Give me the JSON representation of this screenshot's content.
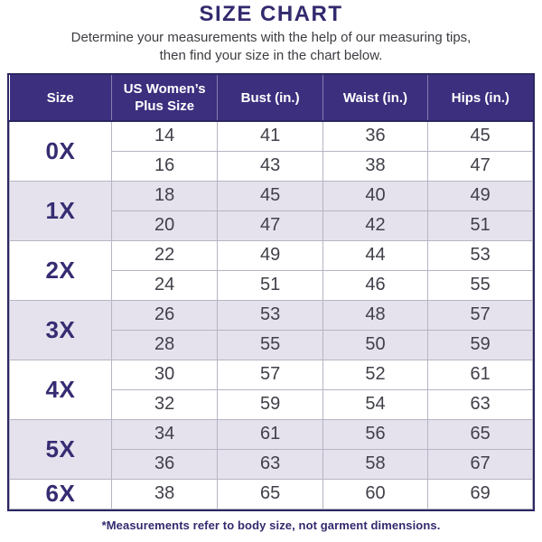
{
  "page": {
    "title": "SIZE CHART",
    "subtitle_line1": "Determine your measurements with the help of our measuring tips,",
    "subtitle_line2": "then find your size in the chart below.",
    "footnote": "*Measurements refer to body size, not garment dimensions."
  },
  "colors": {
    "header_bg": "#3c2f7e",
    "outer_border": "#2b2663",
    "grid_line": "#b7b4c3",
    "row_alt_bg": "#e5e2ee",
    "title_text": "#322a6e",
    "size_label_text": "#352c72",
    "number_text": "#414049",
    "subtitle_text": "#3d3c42"
  },
  "chart_data": {
    "type": "table",
    "columns": [
      "Size",
      "US Women’s Plus Size",
      "Bust (in.)",
      "Waist (in.)",
      "Hips (in.)"
    ],
    "column_widths_percent": [
      19.5,
      20.3,
      20.1,
      20.1,
      20.0
    ],
    "groups": [
      {
        "size": "0X",
        "shaded": false,
        "rows": [
          [
            14,
            41,
            36,
            45
          ],
          [
            16,
            43,
            38,
            47
          ]
        ]
      },
      {
        "size": "1X",
        "shaded": true,
        "rows": [
          [
            18,
            45,
            40,
            49
          ],
          [
            20,
            47,
            42,
            51
          ]
        ]
      },
      {
        "size": "2X",
        "shaded": false,
        "rows": [
          [
            22,
            49,
            44,
            53
          ],
          [
            24,
            51,
            46,
            55
          ]
        ]
      },
      {
        "size": "3X",
        "shaded": true,
        "rows": [
          [
            26,
            53,
            48,
            57
          ],
          [
            28,
            55,
            50,
            59
          ]
        ]
      },
      {
        "size": "4X",
        "shaded": false,
        "rows": [
          [
            30,
            57,
            52,
            61
          ],
          [
            32,
            59,
            54,
            63
          ]
        ]
      },
      {
        "size": "5X",
        "shaded": true,
        "rows": [
          [
            34,
            61,
            56,
            65
          ],
          [
            36,
            63,
            58,
            67
          ]
        ]
      },
      {
        "size": "6X",
        "shaded": false,
        "rows": [
          [
            38,
            65,
            60,
            69
          ]
        ]
      }
    ]
  }
}
